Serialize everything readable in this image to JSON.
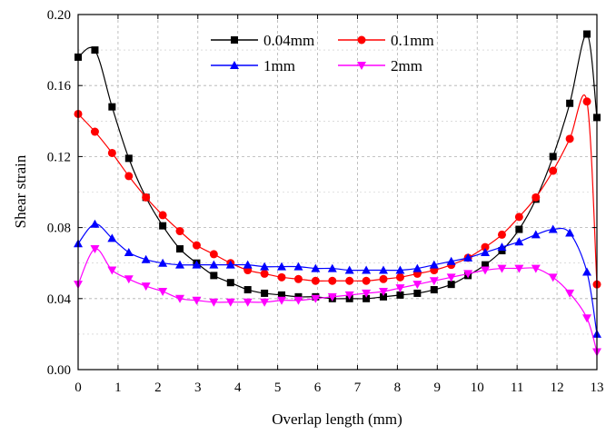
{
  "chart_data": {
    "type": "line",
    "title": "",
    "xlabel": "Overlap length (mm)",
    "ylabel": "Shear strain",
    "xlim": [
      0,
      13
    ],
    "ylim": [
      0,
      0.2
    ],
    "xticks": [
      "0",
      "1",
      "2",
      "3",
      "4",
      "5",
      "6",
      "7",
      "8",
      "9",
      "10",
      "11",
      "12",
      "13"
    ],
    "yticks": [
      "0.00",
      "0.04",
      "0.08",
      "0.12",
      "0.16",
      "0.20"
    ],
    "grid": true,
    "legend_position": "top-center",
    "series": [
      {
        "name": "0.04mm",
        "color": "#000000",
        "marker": "square",
        "x": [
          0,
          0.42,
          0.85,
          1.27,
          1.7,
          2.12,
          2.55,
          2.97,
          3.4,
          3.82,
          4.25,
          4.67,
          5.1,
          5.52,
          5.95,
          6.37,
          6.8,
          7.22,
          7.65,
          8.07,
          8.5,
          8.92,
          9.35,
          9.77,
          10.2,
          10.62,
          11.05,
          11.47,
          11.9,
          12.32,
          12.75,
          13
        ],
        "y": [
          0.176,
          0.18,
          0.148,
          0.119,
          0.097,
          0.081,
          0.068,
          0.06,
          0.053,
          0.049,
          0.045,
          0.043,
          0.042,
          0.041,
          0.041,
          0.04,
          0.04,
          0.04,
          0.041,
          0.042,
          0.043,
          0.045,
          0.048,
          0.053,
          0.059,
          0.067,
          0.079,
          0.096,
          0.12,
          0.15,
          0.189,
          0.142
        ]
      },
      {
        "name": "0.1mm",
        "color": "#ff0000",
        "marker": "circle",
        "x": [
          0,
          0.42,
          0.85,
          1.27,
          1.7,
          2.12,
          2.55,
          2.97,
          3.4,
          3.82,
          4.25,
          4.67,
          5.1,
          5.52,
          5.95,
          6.37,
          6.8,
          7.22,
          7.65,
          8.07,
          8.5,
          8.92,
          9.35,
          9.77,
          10.2,
          10.62,
          11.05,
          11.47,
          11.9,
          12.32,
          12.75,
          13
        ],
        "y": [
          0.144,
          0.134,
          0.122,
          0.109,
          0.097,
          0.087,
          0.078,
          0.07,
          0.065,
          0.06,
          0.056,
          0.054,
          0.052,
          0.051,
          0.05,
          0.05,
          0.05,
          0.05,
          0.051,
          0.052,
          0.054,
          0.056,
          0.059,
          0.063,
          0.069,
          0.076,
          0.086,
          0.097,
          0.112,
          0.13,
          0.151,
          0.048
        ]
      },
      {
        "name": "1mm",
        "color": "#0000ff",
        "marker": "triangle-up",
        "x": [
          0,
          0.42,
          0.85,
          1.27,
          1.7,
          2.12,
          2.55,
          2.97,
          3.4,
          3.82,
          4.25,
          4.67,
          5.1,
          5.52,
          5.95,
          6.37,
          6.8,
          7.22,
          7.65,
          8.07,
          8.5,
          8.92,
          9.35,
          9.77,
          10.2,
          10.62,
          11.05,
          11.47,
          11.9,
          12.32,
          12.75,
          13
        ],
        "y": [
          0.071,
          0.082,
          0.074,
          0.066,
          0.062,
          0.06,
          0.059,
          0.059,
          0.059,
          0.059,
          0.059,
          0.058,
          0.058,
          0.058,
          0.057,
          0.057,
          0.056,
          0.056,
          0.056,
          0.056,
          0.057,
          0.059,
          0.061,
          0.063,
          0.066,
          0.069,
          0.072,
          0.076,
          0.079,
          0.077,
          0.055,
          0.02
        ]
      },
      {
        "name": "2mm",
        "color": "#ff00ff",
        "marker": "triangle-down",
        "x": [
          0,
          0.42,
          0.85,
          1.27,
          1.7,
          2.12,
          2.55,
          2.97,
          3.4,
          3.82,
          4.25,
          4.67,
          5.1,
          5.52,
          5.95,
          6.37,
          6.8,
          7.22,
          7.65,
          8.07,
          8.5,
          8.92,
          9.35,
          9.77,
          10.2,
          10.62,
          11.05,
          11.47,
          11.9,
          12.32,
          12.75,
          13
        ],
        "y": [
          0.048,
          0.068,
          0.056,
          0.051,
          0.047,
          0.044,
          0.04,
          0.039,
          0.038,
          0.038,
          0.038,
          0.038,
          0.039,
          0.039,
          0.04,
          0.041,
          0.042,
          0.043,
          0.044,
          0.046,
          0.048,
          0.05,
          0.052,
          0.054,
          0.056,
          0.057,
          0.057,
          0.057,
          0.052,
          0.043,
          0.029,
          0.01
        ]
      }
    ]
  }
}
